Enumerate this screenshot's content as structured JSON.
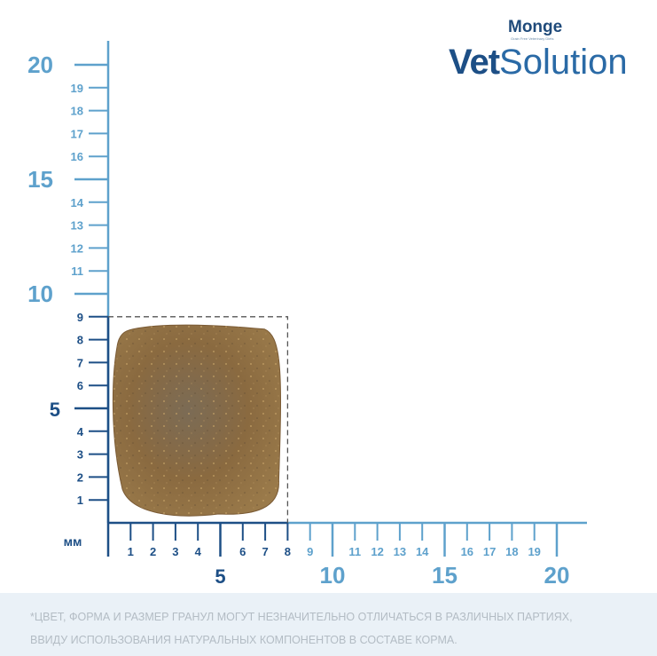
{
  "brand": {
    "maker": "Monge",
    "maker_tagline": "Grain Free Veterinary Diets",
    "product_strong": "Vet",
    "product_light": "Solution",
    "primary_color": "#1d4f86",
    "scale_color": "#5ea1cc"
  },
  "ruler": {
    "unit": "мм",
    "y_major": [
      "20",
      "15",
      "10",
      "5"
    ],
    "y_minor": [
      "1",
      "2",
      "3",
      "4",
      "6",
      "7",
      "8",
      "9",
      "11",
      "12",
      "13",
      "14",
      "16",
      "17",
      "18",
      "19"
    ],
    "x_major": [
      "5",
      "10",
      "15",
      "20"
    ],
    "x_minor": [
      "1",
      "2",
      "3",
      "4",
      "6",
      "7",
      "8",
      "9",
      "11",
      "12",
      "13",
      "14",
      "16",
      "17",
      "18",
      "19"
    ]
  },
  "kibble": {
    "width_mm": 8,
    "height_mm": 9,
    "color": "#8a6a40"
  },
  "disclaimer": {
    "line1": "*ЦВЕТ, ФОРМА И РАЗМЕР ГРАНУЛ МОГУТ НЕЗНАЧИТЕЛЬНО ОТЛИЧАТЬСЯ В РАЗЛИЧНЫХ ПАРТИЯХ,",
    "line2": "ВВИДУ ИСПОЛЬЗОВАНИЯ НАТУРАЛЬНЫХ КОМПОНЕНТОВ В СОСТАВЕ КОРМА."
  }
}
